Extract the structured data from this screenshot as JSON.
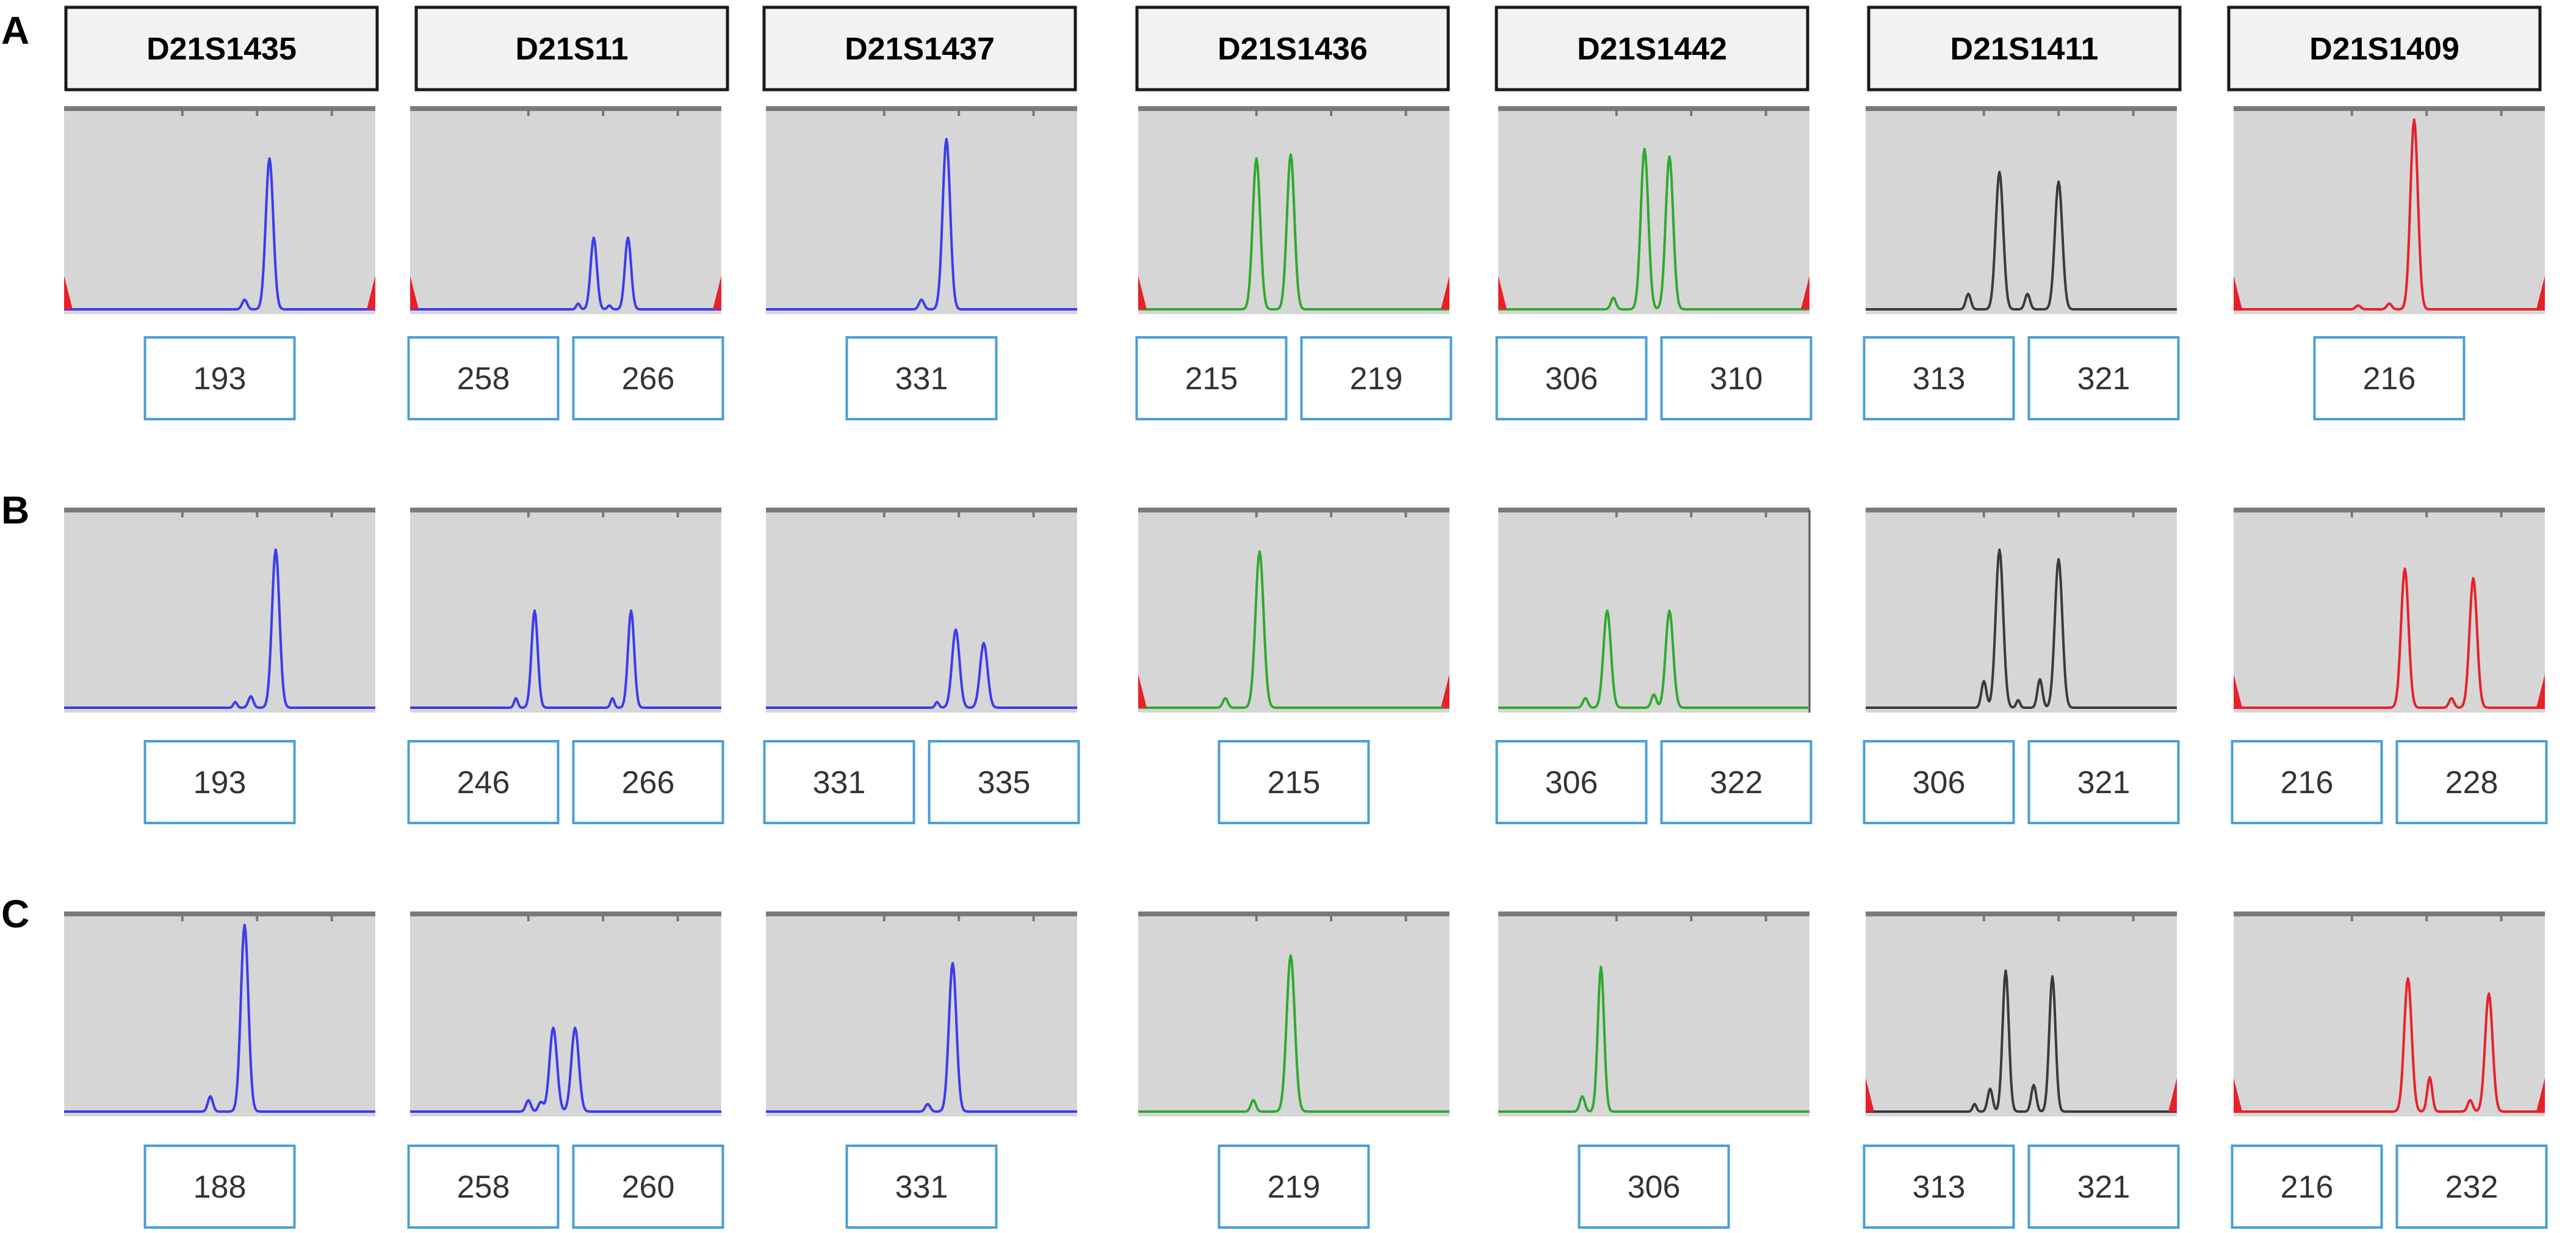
{
  "colors": {
    "blue": "#3b3bf0",
    "green": "#2faa2f",
    "black": "#3a3a3a",
    "red": "#e8202a",
    "box_border": "#4a9fd4",
    "panel_background": "#d6d6d6"
  },
  "markers": [
    {
      "name": "D21S1435",
      "dye": "blue"
    },
    {
      "name": "D21S11",
      "dye": "blue"
    },
    {
      "name": "D21S1437",
      "dye": "blue"
    },
    {
      "name": "D21S1436",
      "dye": "green"
    },
    {
      "name": "D21S1442",
      "dye": "green"
    },
    {
      "name": "D21S1411",
      "dye": "black"
    },
    {
      "name": "D21S1409",
      "dye": "red"
    }
  ],
  "rows": [
    {
      "label": "A",
      "alleles": [
        [
          "193"
        ],
        [
          "258",
          "266"
        ],
        [
          "331"
        ],
        [
          "215",
          "219"
        ],
        [
          "306",
          "310"
        ],
        [
          "313",
          "321"
        ],
        [
          "216"
        ]
      ]
    },
    {
      "label": "B",
      "alleles": [
        [
          "193"
        ],
        [
          "246",
          "266"
        ],
        [
          "331",
          "335"
        ],
        [
          "215"
        ],
        [
          "306",
          "322"
        ],
        [
          "306",
          "321"
        ],
        [
          "216",
          "228"
        ]
      ]
    },
    {
      "label": "C",
      "alleles": [
        [
          "188"
        ],
        [
          "258",
          "260"
        ],
        [
          "331"
        ],
        [
          "219"
        ],
        [
          "306"
        ],
        [
          "313",
          "321"
        ],
        [
          "216",
          "232"
        ]
      ]
    }
  ]
}
